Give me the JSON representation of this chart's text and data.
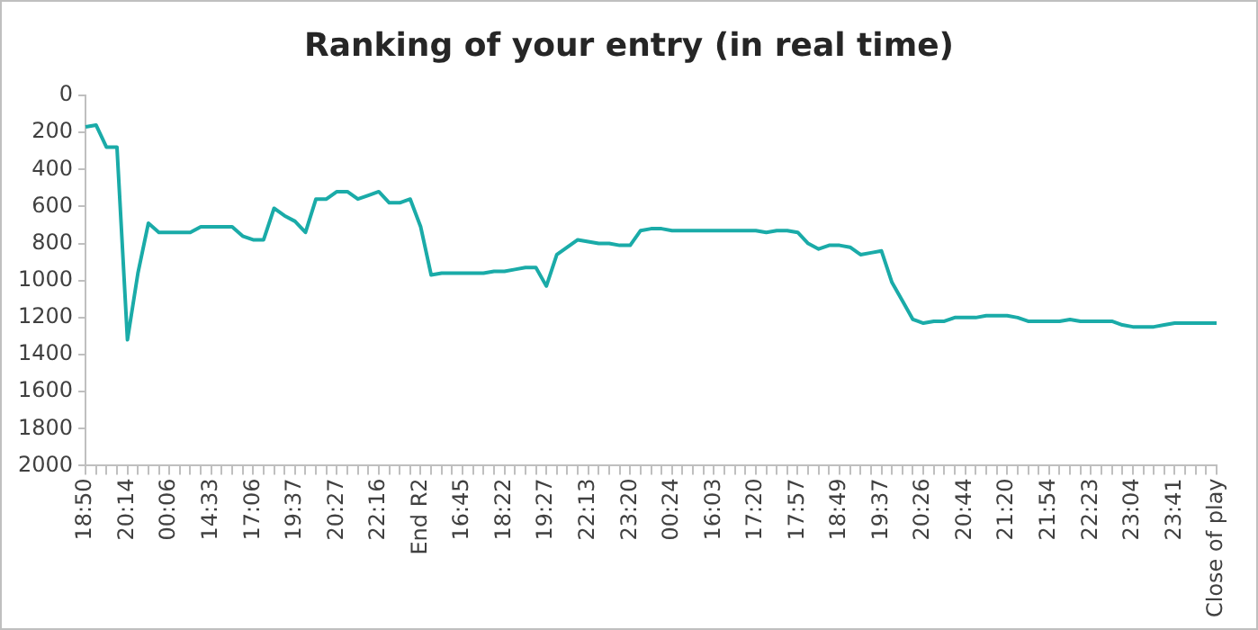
{
  "chart_data": {
    "type": "line",
    "title": "Ranking of your entry (in real time)",
    "categories": [
      "18:50",
      null,
      null,
      null,
      "20:14",
      null,
      null,
      null,
      "00:06",
      null,
      null,
      null,
      "14:33",
      null,
      null,
      null,
      "17:06",
      null,
      null,
      null,
      "19:37",
      null,
      null,
      null,
      "20:27",
      null,
      null,
      null,
      "22:16",
      null,
      null,
      null,
      "End R2",
      null,
      null,
      null,
      "16:45",
      null,
      null,
      null,
      "18:22",
      null,
      null,
      null,
      "19:27",
      null,
      null,
      null,
      "22:13",
      null,
      null,
      null,
      "23:20",
      null,
      null,
      null,
      "00:24",
      null,
      null,
      null,
      "16:03",
      null,
      null,
      null,
      "17:20",
      null,
      null,
      null,
      "17:57",
      null,
      null,
      null,
      "18:49",
      null,
      null,
      null,
      "19:37",
      null,
      null,
      null,
      "20:26",
      null,
      null,
      null,
      "20:44",
      null,
      null,
      null,
      "21:20",
      null,
      null,
      null,
      "21:54",
      null,
      null,
      null,
      "22:23",
      null,
      null,
      null,
      "23:04",
      null,
      null,
      null,
      "23:41",
      null,
      null,
      null,
      "Close of play"
    ],
    "series": [
      {
        "color": "#1aaba8",
        "values": [
          170,
          160,
          280,
          280,
          1320,
          960,
          690,
          740,
          740,
          740,
          740,
          710,
          710,
          710,
          710,
          760,
          780,
          780,
          610,
          650,
          680,
          740,
          560,
          560,
          520,
          520,
          560,
          540,
          520,
          580,
          580,
          560,
          710,
          970,
          960,
          960,
          960,
          960,
          960,
          950,
          950,
          940,
          930,
          930,
          1030,
          860,
          820,
          780,
          790,
          800,
          800,
          810,
          810,
          730,
          720,
          720,
          730,
          730,
          730,
          730,
          730,
          730,
          730,
          730,
          730,
          740,
          730,
          730,
          740,
          800,
          830,
          810,
          810,
          820,
          860,
          850,
          840,
          1010,
          1110,
          1210,
          1230,
          1220,
          1220,
          1200,
          1200,
          1200,
          1190,
          1190,
          1190,
          1200,
          1220,
          1220,
          1220,
          1220,
          1210,
          1220,
          1220,
          1220,
          1220,
          1240,
          1250,
          1250,
          1250,
          1240,
          1230,
          1230,
          1230,
          1230,
          1230
        ]
      }
    ],
    "ylim": [
      2000,
      0
    ],
    "yticks": [
      0,
      200,
      400,
      600,
      800,
      1000,
      1200,
      1400,
      1600,
      1800,
      2000
    ],
    "grid": false,
    "legend": false,
    "marker": "none",
    "line_style": "solid"
  }
}
